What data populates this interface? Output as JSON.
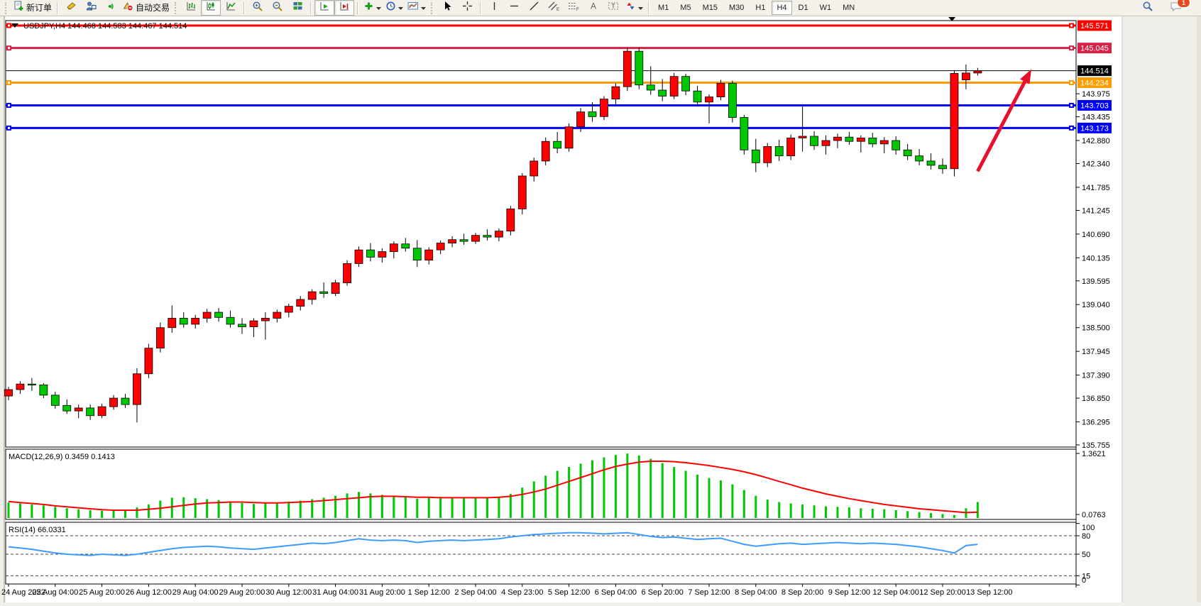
{
  "toolbar": {
    "new_order": "新订单",
    "autotrading": "自动交易",
    "icons": [
      "new-order-icon",
      "market-watch-icon",
      "data-window-icon",
      "navigator-icon",
      "autotrading-icon",
      "bar-chart-icon",
      "candlestick-chart-icon",
      "line-chart-icon",
      "zoom-in-icon",
      "zoom-out-icon",
      "tile-windows-icon",
      "auto-scroll-icon",
      "chart-shift-icon",
      "indicators-icon",
      "periods-icon",
      "templates-icon",
      "cursor-icon",
      "crosshair-icon",
      "vertical-line-icon",
      "horizontal-line-icon",
      "trendline-icon",
      "channel-icon",
      "fibonacci-icon",
      "text-icon",
      "text-label-icon",
      "arrows-icon",
      "search-icon",
      "chat-icon"
    ],
    "timeframes": [
      "M1",
      "M5",
      "M15",
      "M30",
      "H1",
      "H4",
      "D1",
      "W1",
      "MN"
    ],
    "active_timeframe": "H4",
    "notification_badge": "1"
  },
  "chart": {
    "title": "USDJPY,H4 144.468 144.583 144.467 144.514",
    "macd_label": "MACD(12,26,9) 0.3459 0.1413",
    "rsi_label": "RSI(14) 66.0331"
  },
  "chart_data": {
    "type": "candlestick",
    "symbol": "USDJPY",
    "period": "H4",
    "ohlc_current": {
      "open": 144.468,
      "high": 144.583,
      "low": 144.467,
      "close": 144.514
    },
    "current_price": 144.514,
    "price_ticks": [
      143.975,
      143.435,
      142.88,
      142.34,
      141.785,
      141.245,
      140.69,
      140.135,
      139.595,
      139.04,
      138.5,
      137.945,
      137.39,
      136.85,
      136.295,
      135.755
    ],
    "hlines": [
      {
        "price": 145.571,
        "label": "145.571",
        "color": "#ff0000",
        "width": 3,
        "handles": true
      },
      {
        "price": 145.045,
        "label": "145.045",
        "color": "#d62246",
        "width": 3,
        "handles": true
      },
      {
        "price": 144.514,
        "label": "144.514",
        "color": "#000000",
        "width": 1,
        "handles": false
      },
      {
        "price": 144.234,
        "label": "144.234",
        "color": "#ff9d00",
        "width": 3,
        "handles": true
      },
      {
        "price": 143.703,
        "label": "143.703",
        "color": "#0000ff",
        "width": 3,
        "handles": true
      },
      {
        "price": 143.173,
        "label": "143.173",
        "color": "#0000ff",
        "width": 3,
        "handles": true
      }
    ],
    "candles": [
      [
        136.9,
        137.12,
        136.8,
        137.05
      ],
      [
        137.05,
        137.25,
        136.95,
        137.18
      ],
      [
        137.18,
        137.32,
        137.02,
        137.16
      ],
      [
        137.16,
        137.2,
        136.85,
        136.92
      ],
      [
        136.92,
        137.0,
        136.6,
        136.68
      ],
      [
        136.68,
        136.82,
        136.48,
        136.55
      ],
      [
        136.55,
        136.7,
        136.38,
        136.62
      ],
      [
        136.62,
        136.7,
        136.34,
        136.44
      ],
      [
        136.44,
        136.72,
        136.38,
        136.65
      ],
      [
        136.65,
        136.92,
        136.58,
        136.85
      ],
      [
        136.85,
        136.95,
        136.62,
        136.7
      ],
      [
        136.7,
        137.55,
        136.28,
        137.42
      ],
      [
        137.42,
        138.12,
        137.32,
        138.02
      ],
      [
        138.02,
        138.62,
        137.92,
        138.5
      ],
      [
        138.5,
        139.02,
        138.38,
        138.72
      ],
      [
        138.72,
        138.86,
        138.5,
        138.58
      ],
      [
        138.58,
        138.8,
        138.48,
        138.72
      ],
      [
        138.72,
        138.94,
        138.62,
        138.86
      ],
      [
        138.86,
        138.96,
        138.64,
        138.74
      ],
      [
        138.74,
        138.9,
        138.5,
        138.58
      ],
      [
        138.58,
        138.72,
        138.35,
        138.52
      ],
      [
        138.52,
        138.72,
        138.28,
        138.66
      ],
      [
        138.66,
        138.86,
        138.22,
        138.72
      ],
      [
        138.72,
        138.92,
        138.62,
        138.86
      ],
      [
        138.86,
        139.06,
        138.74,
        139.0
      ],
      [
        139.0,
        139.24,
        138.9,
        139.16
      ],
      [
        139.16,
        139.4,
        139.04,
        139.34
      ],
      [
        139.34,
        139.56,
        139.2,
        139.3
      ],
      [
        139.3,
        139.62,
        139.24,
        139.55
      ],
      [
        139.55,
        140.08,
        139.48,
        140.0
      ],
      [
        140.0,
        140.4,
        139.92,
        140.32
      ],
      [
        140.32,
        140.48,
        140.05,
        140.15
      ],
      [
        140.15,
        140.36,
        140.02,
        140.28
      ],
      [
        140.28,
        140.52,
        140.12,
        140.46
      ],
      [
        140.46,
        140.6,
        140.28,
        140.36
      ],
      [
        140.36,
        140.55,
        139.92,
        140.08
      ],
      [
        140.08,
        140.38,
        139.98,
        140.32
      ],
      [
        140.32,
        140.54,
        140.22,
        140.48
      ],
      [
        140.48,
        140.64,
        140.38,
        140.56
      ],
      [
        140.56,
        140.7,
        140.44,
        140.52
      ],
      [
        140.52,
        140.72,
        140.46,
        140.66
      ],
      [
        140.66,
        140.8,
        140.54,
        140.62
      ],
      [
        140.62,
        140.82,
        140.52,
        140.76
      ],
      [
        140.76,
        141.35,
        140.66,
        141.28
      ],
      [
        141.28,
        142.12,
        141.15,
        142.05
      ],
      [
        142.05,
        142.48,
        141.92,
        142.4
      ],
      [
        142.4,
        142.95,
        142.3,
        142.86
      ],
      [
        142.86,
        143.08,
        142.58,
        142.7
      ],
      [
        142.7,
        143.28,
        142.62,
        143.2
      ],
      [
        143.2,
        143.64,
        143.08,
        143.55
      ],
      [
        143.55,
        143.78,
        143.32,
        143.44
      ],
      [
        143.44,
        143.92,
        143.36,
        143.85
      ],
      [
        143.85,
        144.22,
        143.72,
        144.14
      ],
      [
        144.14,
        145.05,
        144.04,
        144.97
      ],
      [
        144.97,
        145.06,
        144.08,
        144.18
      ],
      [
        144.18,
        144.62,
        143.95,
        144.06
      ],
      [
        144.06,
        144.32,
        143.8,
        143.92
      ],
      [
        143.92,
        144.46,
        143.85,
        144.38
      ],
      [
        144.38,
        144.44,
        143.94,
        144.04
      ],
      [
        144.04,
        144.16,
        143.68,
        143.78
      ],
      [
        143.78,
        143.96,
        143.28,
        143.9
      ],
      [
        143.9,
        144.3,
        143.82,
        144.22
      ],
      [
        144.22,
        144.28,
        143.3,
        143.42
      ],
      [
        143.42,
        143.48,
        142.55,
        142.66
      ],
      [
        142.66,
        142.92,
        142.14,
        142.36
      ],
      [
        142.36,
        142.82,
        142.26,
        142.74
      ],
      [
        142.74,
        142.9,
        142.4,
        142.52
      ],
      [
        142.52,
        143.02,
        142.42,
        142.94
      ],
      [
        142.94,
        143.7,
        142.62,
        142.98
      ],
      [
        142.98,
        143.1,
        142.66,
        142.76
      ],
      [
        142.76,
        143.0,
        142.55,
        142.88
      ],
      [
        142.88,
        143.04,
        142.7,
        142.96
      ],
      [
        142.96,
        143.08,
        142.78,
        142.86
      ],
      [
        142.86,
        143.0,
        142.6,
        142.94
      ],
      [
        142.94,
        143.06,
        142.72,
        142.8
      ],
      [
        142.8,
        142.96,
        142.58,
        142.88
      ],
      [
        142.88,
        142.98,
        142.55,
        142.66
      ],
      [
        142.66,
        142.8,
        142.42,
        142.52
      ],
      [
        142.52,
        142.68,
        142.3,
        142.4
      ],
      [
        142.4,
        142.58,
        142.2,
        142.3
      ],
      [
        142.3,
        142.46,
        142.1,
        142.22
      ],
      [
        142.22,
        144.52,
        142.04,
        144.45
      ],
      [
        144.3,
        144.66,
        144.08,
        144.46
      ],
      [
        144.46,
        144.58,
        144.4,
        144.51
      ]
    ],
    "macd": {
      "params": "12,26,9",
      "value": 0.3459,
      "signal_value": 0.1413,
      "axis_max_label": "1.3621",
      "axis_min_label": "0.0763",
      "hist": [
        0.34,
        0.32,
        0.3,
        0.28,
        0.25,
        0.22,
        0.2,
        0.18,
        0.17,
        0.18,
        0.19,
        0.24,
        0.3,
        0.38,
        0.44,
        0.45,
        0.43,
        0.41,
        0.39,
        0.36,
        0.33,
        0.31,
        0.32,
        0.34,
        0.36,
        0.38,
        0.41,
        0.44,
        0.48,
        0.53,
        0.56,
        0.53,
        0.5,
        0.48,
        0.45,
        0.42,
        0.44,
        0.46,
        0.45,
        0.44,
        0.43,
        0.44,
        0.46,
        0.52,
        0.65,
        0.78,
        0.9,
        1.0,
        1.08,
        1.15,
        1.22,
        1.28,
        1.33,
        1.36,
        1.32,
        1.25,
        1.16,
        1.08,
        1.0,
        0.92,
        0.85,
        0.8,
        0.72,
        0.6,
        0.48,
        0.4,
        0.35,
        0.32,
        0.3,
        0.28,
        0.26,
        0.25,
        0.24,
        0.22,
        0.21,
        0.2,
        0.18,
        0.16,
        0.14,
        0.12,
        0.1,
        0.08,
        0.22,
        0.35
      ],
      "signal": [
        0.36,
        0.34,
        0.32,
        0.3,
        0.27,
        0.25,
        0.23,
        0.21,
        0.19,
        0.18,
        0.18,
        0.18,
        0.2,
        0.22,
        0.25,
        0.28,
        0.31,
        0.33,
        0.34,
        0.35,
        0.35,
        0.34,
        0.33,
        0.33,
        0.34,
        0.35,
        0.36,
        0.38,
        0.4,
        0.42,
        0.44,
        0.46,
        0.47,
        0.47,
        0.46,
        0.45,
        0.45,
        0.44,
        0.44,
        0.44,
        0.44,
        0.44,
        0.45,
        0.47,
        0.51,
        0.56,
        0.62,
        0.7,
        0.78,
        0.86,
        0.94,
        1.02,
        1.09,
        1.14,
        1.18,
        1.2,
        1.2,
        1.19,
        1.17,
        1.14,
        1.11,
        1.07,
        1.03,
        0.98,
        0.92,
        0.85,
        0.78,
        0.71,
        0.64,
        0.58,
        0.52,
        0.47,
        0.42,
        0.38,
        0.34,
        0.3,
        0.27,
        0.24,
        0.21,
        0.19,
        0.17,
        0.15,
        0.13,
        0.14
      ]
    },
    "rsi": {
      "period": 14,
      "value": 66.0331,
      "axis_labels": [
        100,
        80,
        50,
        15,
        0
      ],
      "dashed_levels": [
        80,
        50,
        15
      ],
      "values": [
        62,
        60,
        58,
        55,
        52,
        50,
        49,
        48,
        50,
        49,
        48,
        50,
        53,
        56,
        59,
        61,
        62,
        63,
        62,
        60,
        59,
        58,
        60,
        62,
        64,
        66,
        68,
        67,
        69,
        72,
        75,
        73,
        72,
        73,
        72,
        69,
        71,
        72,
        73,
        72,
        73,
        74,
        75,
        78,
        80,
        82,
        83,
        84,
        85,
        85,
        84,
        83,
        84,
        85,
        82,
        79,
        77,
        78,
        76,
        74,
        75,
        76,
        71,
        66,
        63,
        65,
        67,
        68,
        66,
        67,
        68,
        69,
        68,
        67,
        68,
        67,
        66,
        64,
        62,
        59,
        56,
        52,
        64,
        66
      ]
    },
    "time_labels": [
      "24 Aug 2022",
      "25 Aug 04:00",
      "25 Aug 20:00",
      "26 Aug 12:00",
      "29 Aug 04:00",
      "29 Aug 20:00",
      "30 Aug 12:00",
      "31 Aug 04:00",
      "31 Aug 20:00",
      "1 Sep 12:00",
      "2 Sep 04:00",
      "4 Sep 23:00",
      "5 Sep 12:00",
      "6 Sep 04:00",
      "6 Sep 20:00",
      "7 Sep 12:00",
      "8 Sep 04:00",
      "8 Sep 20:00",
      "9 Sep 12:00",
      "12 Sep 04:00",
      "12 Sep 20:00",
      "13 Sep 12:00"
    ],
    "bars_per_label": 4,
    "arrow": {
      "from_bar": 83.0,
      "from_price": 142.16,
      "to_bar": 87.6,
      "to_price": 144.55,
      "color": "#e8112d"
    },
    "shift_marker_bar": 80.8,
    "colors": {
      "up_candle": "#ff0000",
      "down_candle": "#00c800",
      "candle_outline": "#000000",
      "macd_hist": "#00c800",
      "macd_signal": "#ff0000",
      "rsi_line": "#3e9bff",
      "grid_dash": "#444444",
      "axis_text": "#000000"
    }
  }
}
